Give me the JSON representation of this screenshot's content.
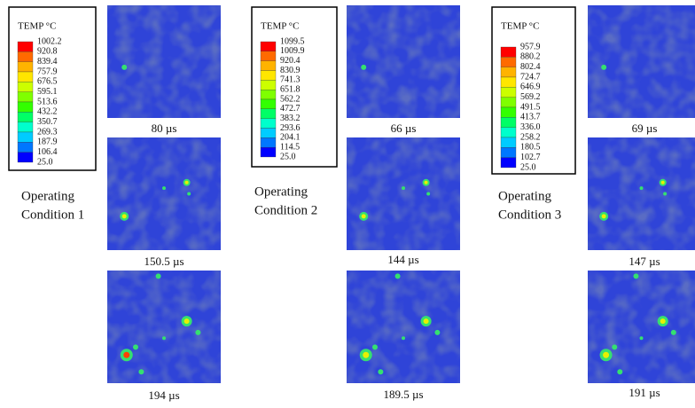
{
  "panels": [
    {
      "legend": {
        "title": "TEMP  °C",
        "labels": [
          "1002.2",
          "920.8",
          "839.4",
          "757.9",
          "676.5",
          "595.1",
          "513.6",
          "432.2",
          "350.7",
          "269.3",
          "187.9",
          "106.4",
          "25.0"
        ]
      },
      "condition": [
        "Operating",
        "Condition 1"
      ],
      "times": [
        "80 µs",
        "150.5 µs",
        "194 µs"
      ]
    },
    {
      "legend": {
        "title": "TEMP  °C",
        "labels": [
          "1099.5",
          "1009.9",
          "920.4",
          "830.9",
          "741.3",
          "651.8",
          "562.2",
          "472.7",
          "383.2",
          "293.6",
          "204.1",
          "114.5",
          "25.0"
        ]
      },
      "condition": [
        "Operating",
        "Condition 2"
      ],
      "times": [
        "66 µs",
        "144 µs",
        "189.5 µs"
      ]
    },
    {
      "legend": {
        "title": "TEMP  °C",
        "labels": [
          "957.9",
          "880.2",
          "802.4",
          "724.7",
          "646.9",
          "569.2",
          "491.5",
          "413.7",
          "336.0",
          "258.2",
          "180.5",
          "102.7",
          "25.0"
        ]
      },
      "condition": [
        "Operating",
        "Condition 3"
      ],
      "times": [
        "69 µs",
        "147 µs",
        "191 µs"
      ]
    }
  ]
}
